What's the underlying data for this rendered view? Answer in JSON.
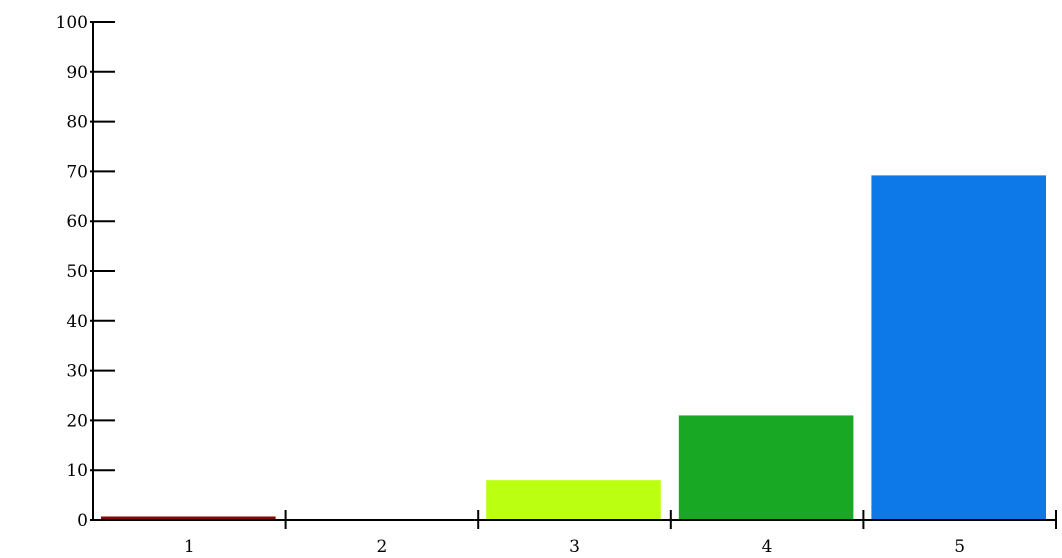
{
  "chart_data": {
    "type": "bar",
    "categories": [
      "1",
      "2",
      "3",
      "4",
      "5"
    ],
    "values": [
      0.7,
      0,
      8,
      21,
      69.2
    ],
    "colors": [
      "#8b0000",
      "#000000",
      "#bbff11",
      "#19a824",
      "#0d79e8"
    ],
    "ylim": [
      0,
      100
    ],
    "yticks": [
      0,
      10,
      20,
      30,
      40,
      50,
      60,
      70,
      80,
      90,
      100
    ],
    "title": "",
    "xlabel": "",
    "ylabel": "",
    "grid": false,
    "legend": "none"
  }
}
